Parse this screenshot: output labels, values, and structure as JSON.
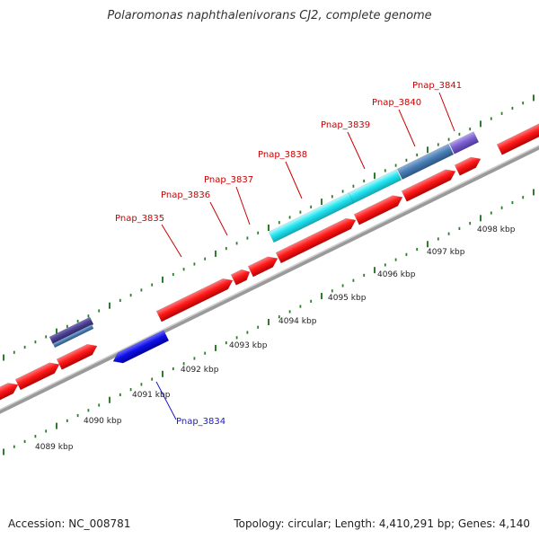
{
  "title": "Polaromonas naphthalenivorans CJ2, complete genome",
  "footer": {
    "accession": "Accession: NC_008781",
    "summary": "Topology: circular; Length: 4,410,291 bp; Genes: 4,140"
  },
  "scale_labels": [
    "4089 kbp",
    "4090 kbp",
    "4091 kbp",
    "4092 kbp",
    "4093 kbp",
    "4094 kbp",
    "4095 kbp",
    "4096 kbp",
    "4097 kbp",
    "4098 kbp"
  ],
  "colors": {
    "forward_gene": "#ff1a1a",
    "reverse_gene": "#1010e6",
    "label_forward": "#cc0000",
    "label_reverse": "#1a1acc",
    "cyan_feature": "#22e5f0",
    "steelblue_feature": "#4a7fb5",
    "purple_feature": "#7b5fd0",
    "darkpurple_feature": "#4a3f8f",
    "tick": "#2e7d2e",
    "backbone": "#9a9a9a"
  },
  "genes": [
    {
      "label": "Pnap_3835",
      "strand": "forward"
    },
    {
      "label": "Pnap_3836",
      "strand": "forward"
    },
    {
      "label": "Pnap_3837",
      "strand": "forward"
    },
    {
      "label": "Pnap_3838",
      "strand": "forward"
    },
    {
      "label": "Pnap_3839",
      "strand": "forward"
    },
    {
      "label": "Pnap_3840",
      "strand": "forward"
    },
    {
      "label": "Pnap_3841",
      "strand": "forward"
    },
    {
      "label": "Pnap_3834",
      "strand": "reverse"
    }
  ]
}
